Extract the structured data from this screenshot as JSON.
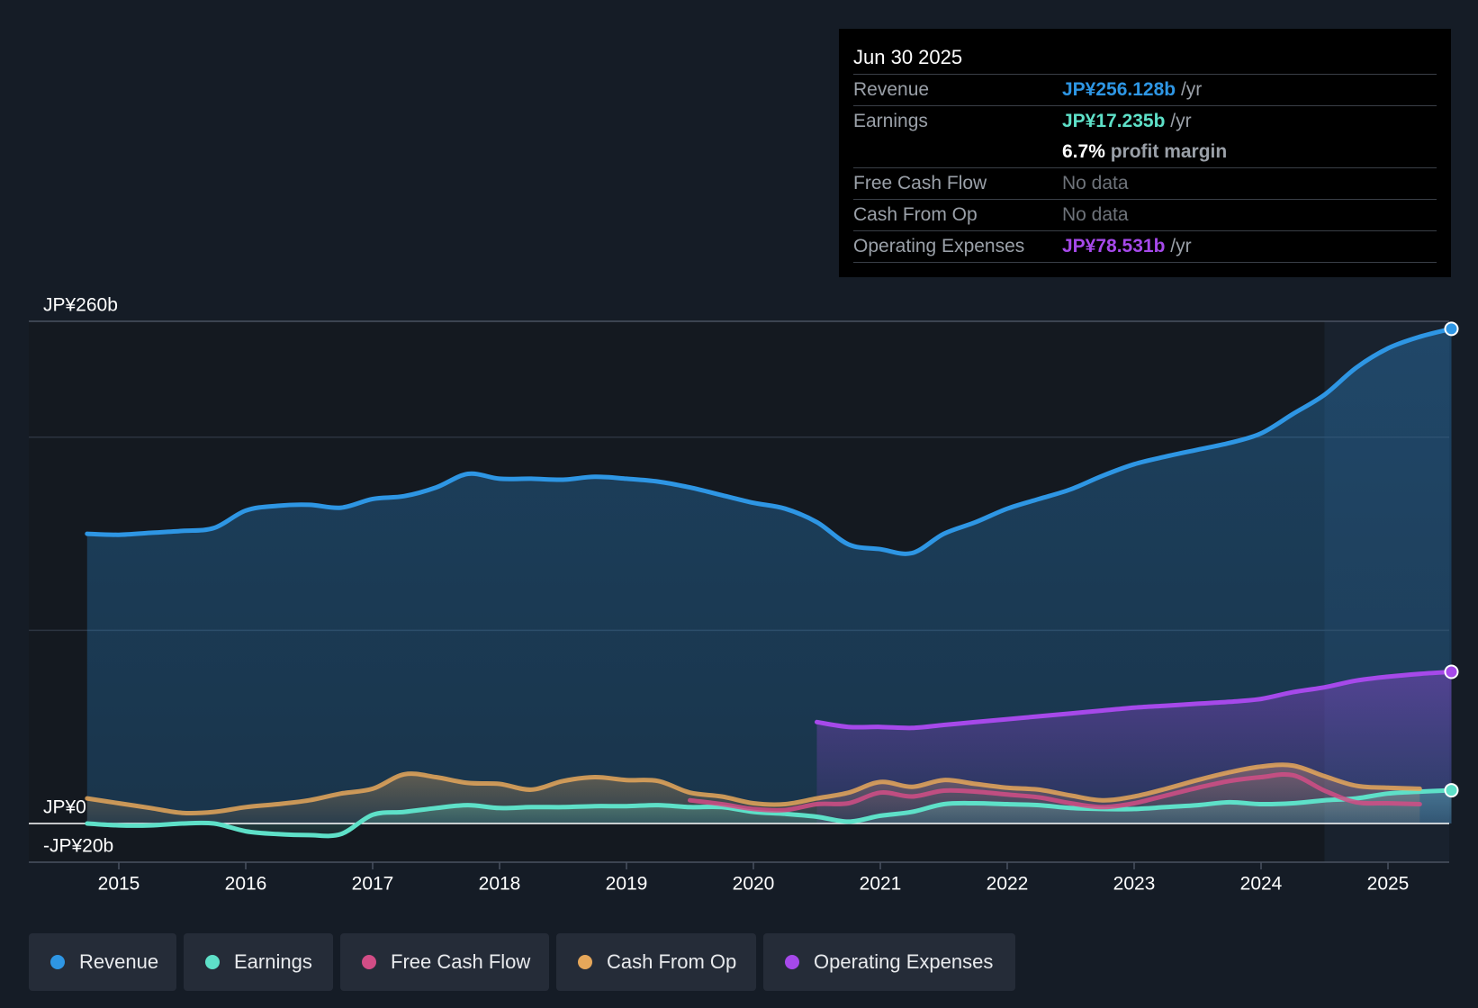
{
  "chart_data": {
    "type": "line",
    "title": "",
    "xlabel": "",
    "ylabel": "",
    "ylim": [
      -20,
      260
    ],
    "y_tick_labels": [
      {
        "value": 260,
        "label": "JP¥260b"
      },
      {
        "value": 0,
        "label": "JP¥0"
      },
      {
        "value": -20,
        "label": "-JP¥20b"
      }
    ],
    "gridlines": [
      260,
      200,
      100
    ],
    "xlim": [
      2014.75,
      2025.5
    ],
    "x_ticks": [
      2015,
      2016,
      2017,
      2018,
      2019,
      2020,
      2021,
      2022,
      2023,
      2024,
      2025
    ],
    "highlight_start": 2024.5,
    "series": [
      {
        "name": "Revenue",
        "color": "#2e96e4",
        "fill": true,
        "end_marker": true,
        "points": [
          [
            2014.75,
            150
          ],
          [
            2015.0,
            149.5
          ],
          [
            2015.25,
            150.5
          ],
          [
            2015.5,
            151.5
          ],
          [
            2015.75,
            153
          ],
          [
            2016.0,
            162
          ],
          [
            2016.25,
            164.5
          ],
          [
            2016.5,
            165
          ],
          [
            2016.75,
            163.5
          ],
          [
            2017.0,
            168
          ],
          [
            2017.25,
            169.5
          ],
          [
            2017.5,
            174
          ],
          [
            2017.75,
            181
          ],
          [
            2018.0,
            178.5
          ],
          [
            2018.25,
            178.5
          ],
          [
            2018.5,
            178
          ],
          [
            2018.75,
            179.5
          ],
          [
            2019.0,
            178.5
          ],
          [
            2019.25,
            177
          ],
          [
            2019.5,
            174
          ],
          [
            2019.75,
            170
          ],
          [
            2020.0,
            166
          ],
          [
            2020.25,
            163
          ],
          [
            2020.5,
            156
          ],
          [
            2020.75,
            144.5
          ],
          [
            2021.0,
            142
          ],
          [
            2021.25,
            140
          ],
          [
            2021.5,
            150
          ],
          [
            2021.75,
            156
          ],
          [
            2022.0,
            163
          ],
          [
            2022.25,
            168
          ],
          [
            2022.5,
            173
          ],
          [
            2022.75,
            180
          ],
          [
            2023.0,
            186
          ],
          [
            2023.25,
            190
          ],
          [
            2023.5,
            193.5
          ],
          [
            2023.75,
            197
          ],
          [
            2024.0,
            202
          ],
          [
            2024.25,
            212
          ],
          [
            2024.5,
            222
          ],
          [
            2024.75,
            236
          ],
          [
            2025.0,
            246
          ],
          [
            2025.25,
            252
          ],
          [
            2025.5,
            256.1
          ]
        ]
      },
      {
        "name": "Earnings",
        "color": "#5ee0c8",
        "fill": true,
        "end_marker": true,
        "points": [
          [
            2014.75,
            0
          ],
          [
            2015.0,
            -1
          ],
          [
            2015.25,
            -1
          ],
          [
            2015.5,
            0
          ],
          [
            2015.75,
            0
          ],
          [
            2016.0,
            -4
          ],
          [
            2016.25,
            -5.5
          ],
          [
            2016.5,
            -6
          ],
          [
            2016.75,
            -5.5
          ],
          [
            2017.0,
            4.5
          ],
          [
            2017.25,
            6
          ],
          [
            2017.5,
            8
          ],
          [
            2017.75,
            9.5
          ],
          [
            2018.0,
            8
          ],
          [
            2018.25,
            8.5
          ],
          [
            2018.5,
            8.5
          ],
          [
            2018.75,
            9
          ],
          [
            2019.0,
            9
          ],
          [
            2019.25,
            9.5
          ],
          [
            2019.5,
            8.5
          ],
          [
            2019.75,
            8.5
          ],
          [
            2020.0,
            6
          ],
          [
            2020.25,
            5
          ],
          [
            2020.5,
            3.5
          ],
          [
            2020.75,
            1
          ],
          [
            2021.0,
            4
          ],
          [
            2021.25,
            6
          ],
          [
            2021.5,
            10
          ],
          [
            2021.75,
            10.5
          ],
          [
            2022.0,
            10
          ],
          [
            2022.25,
            9.5
          ],
          [
            2022.5,
            8
          ],
          [
            2022.75,
            7.5
          ],
          [
            2023.0,
            7.5
          ],
          [
            2023.25,
            8.5
          ],
          [
            2023.5,
            9.5
          ],
          [
            2023.75,
            11
          ],
          [
            2024.0,
            10
          ],
          [
            2024.25,
            10.5
          ],
          [
            2024.5,
            12
          ],
          [
            2024.75,
            13
          ],
          [
            2025.0,
            15.5
          ],
          [
            2025.25,
            16.5
          ],
          [
            2025.5,
            17.2
          ]
        ]
      },
      {
        "name": "Free Cash Flow",
        "color": "#d24d86",
        "fill": false,
        "end_marker": false,
        "points": [
          [
            2019.5,
            12
          ],
          [
            2019.75,
            10
          ],
          [
            2020.0,
            7.5
          ],
          [
            2020.25,
            7
          ],
          [
            2020.5,
            10
          ],
          [
            2020.75,
            10.5
          ],
          [
            2021.0,
            16
          ],
          [
            2021.25,
            14
          ],
          [
            2021.5,
            17
          ],
          [
            2021.75,
            16.5
          ],
          [
            2022.0,
            15
          ],
          [
            2022.25,
            13.5
          ],
          [
            2022.5,
            10.5
          ],
          [
            2022.75,
            8.5
          ],
          [
            2023.0,
            10.5
          ],
          [
            2023.25,
            14.5
          ],
          [
            2023.5,
            18.5
          ],
          [
            2023.75,
            22
          ],
          [
            2024.0,
            24
          ],
          [
            2024.25,
            25
          ],
          [
            2024.5,
            17
          ],
          [
            2024.75,
            11
          ],
          [
            2025.0,
            10.5
          ],
          [
            2025.25,
            10
          ]
        ]
      },
      {
        "name": "Cash From Op",
        "color": "#e6a75a",
        "fill": true,
        "end_marker": false,
        "points": [
          [
            2014.75,
            13
          ],
          [
            2015.0,
            10.5
          ],
          [
            2015.25,
            8
          ],
          [
            2015.5,
            5.5
          ],
          [
            2015.75,
            6
          ],
          [
            2016.0,
            8.5
          ],
          [
            2016.25,
            10
          ],
          [
            2016.5,
            12
          ],
          [
            2016.75,
            15.5
          ],
          [
            2017.0,
            18
          ],
          [
            2017.25,
            25.5
          ],
          [
            2017.5,
            24
          ],
          [
            2017.75,
            21
          ],
          [
            2018.0,
            20.5
          ],
          [
            2018.25,
            17.5
          ],
          [
            2018.5,
            22
          ],
          [
            2018.75,
            24
          ],
          [
            2019.0,
            22.5
          ],
          [
            2019.25,
            22
          ],
          [
            2019.5,
            16
          ],
          [
            2019.75,
            14
          ],
          [
            2020.0,
            10.5
          ],
          [
            2020.25,
            10
          ],
          [
            2020.5,
            13
          ],
          [
            2020.75,
            16
          ],
          [
            2021.0,
            21.5
          ],
          [
            2021.25,
            19
          ],
          [
            2021.5,
            22.5
          ],
          [
            2021.75,
            20.5
          ],
          [
            2022.0,
            18.5
          ],
          [
            2022.25,
            17.5
          ],
          [
            2022.5,
            14.5
          ],
          [
            2022.75,
            12
          ],
          [
            2023.0,
            14
          ],
          [
            2023.25,
            18
          ],
          [
            2023.5,
            22.5
          ],
          [
            2023.75,
            26.5
          ],
          [
            2024.0,
            29.5
          ],
          [
            2024.25,
            30
          ],
          [
            2024.5,
            24.5
          ],
          [
            2024.75,
            19.5
          ],
          [
            2025.0,
            18.5
          ],
          [
            2025.25,
            18
          ]
        ]
      },
      {
        "name": "Operating Expenses",
        "color": "#a649ea",
        "fill": true,
        "end_marker": true,
        "points": [
          [
            2020.5,
            52.5
          ],
          [
            2020.75,
            50
          ],
          [
            2021.0,
            50
          ],
          [
            2021.25,
            49.5
          ],
          [
            2021.5,
            51
          ],
          [
            2021.75,
            52.5
          ],
          [
            2022.0,
            54
          ],
          [
            2022.25,
            55.5
          ],
          [
            2022.5,
            57
          ],
          [
            2022.75,
            58.5
          ],
          [
            2023.0,
            60
          ],
          [
            2023.25,
            61
          ],
          [
            2023.5,
            62
          ],
          [
            2023.75,
            63
          ],
          [
            2024.0,
            64.5
          ],
          [
            2024.25,
            68
          ],
          [
            2024.5,
            70.5
          ],
          [
            2024.75,
            74
          ],
          [
            2025.0,
            76
          ],
          [
            2025.25,
            77.5
          ],
          [
            2025.5,
            78.5
          ]
        ]
      }
    ]
  },
  "tooltip": {
    "date": "Jun 30 2025",
    "rows": [
      {
        "label": "Revenue",
        "value": "JP¥256.128b",
        "suffix": " /yr",
        "color": "#2e96e4"
      },
      {
        "label": "Earnings",
        "value": "JP¥17.235b",
        "suffix": " /yr",
        "color": "#5ee0c8"
      },
      {
        "label": "",
        "value": "6.7%",
        "suffix": " profit margin",
        "color": "#ffffff"
      },
      {
        "label": "Free Cash Flow",
        "value": "No data",
        "suffix": "",
        "color": "#6e737a"
      },
      {
        "label": "Cash From Op",
        "value": "No data",
        "suffix": "",
        "color": "#6e737a"
      },
      {
        "label": "Operating Expenses",
        "value": "JP¥78.531b",
        "suffix": " /yr",
        "color": "#a649ea"
      }
    ]
  },
  "legend": [
    {
      "label": "Revenue",
      "color": "#2e96e4"
    },
    {
      "label": "Earnings",
      "color": "#5ee0c8"
    },
    {
      "label": "Free Cash Flow",
      "color": "#d24d86"
    },
    {
      "label": "Cash From Op",
      "color": "#e6a75a"
    },
    {
      "label": "Operating Expenses",
      "color": "#a649ea"
    }
  ]
}
